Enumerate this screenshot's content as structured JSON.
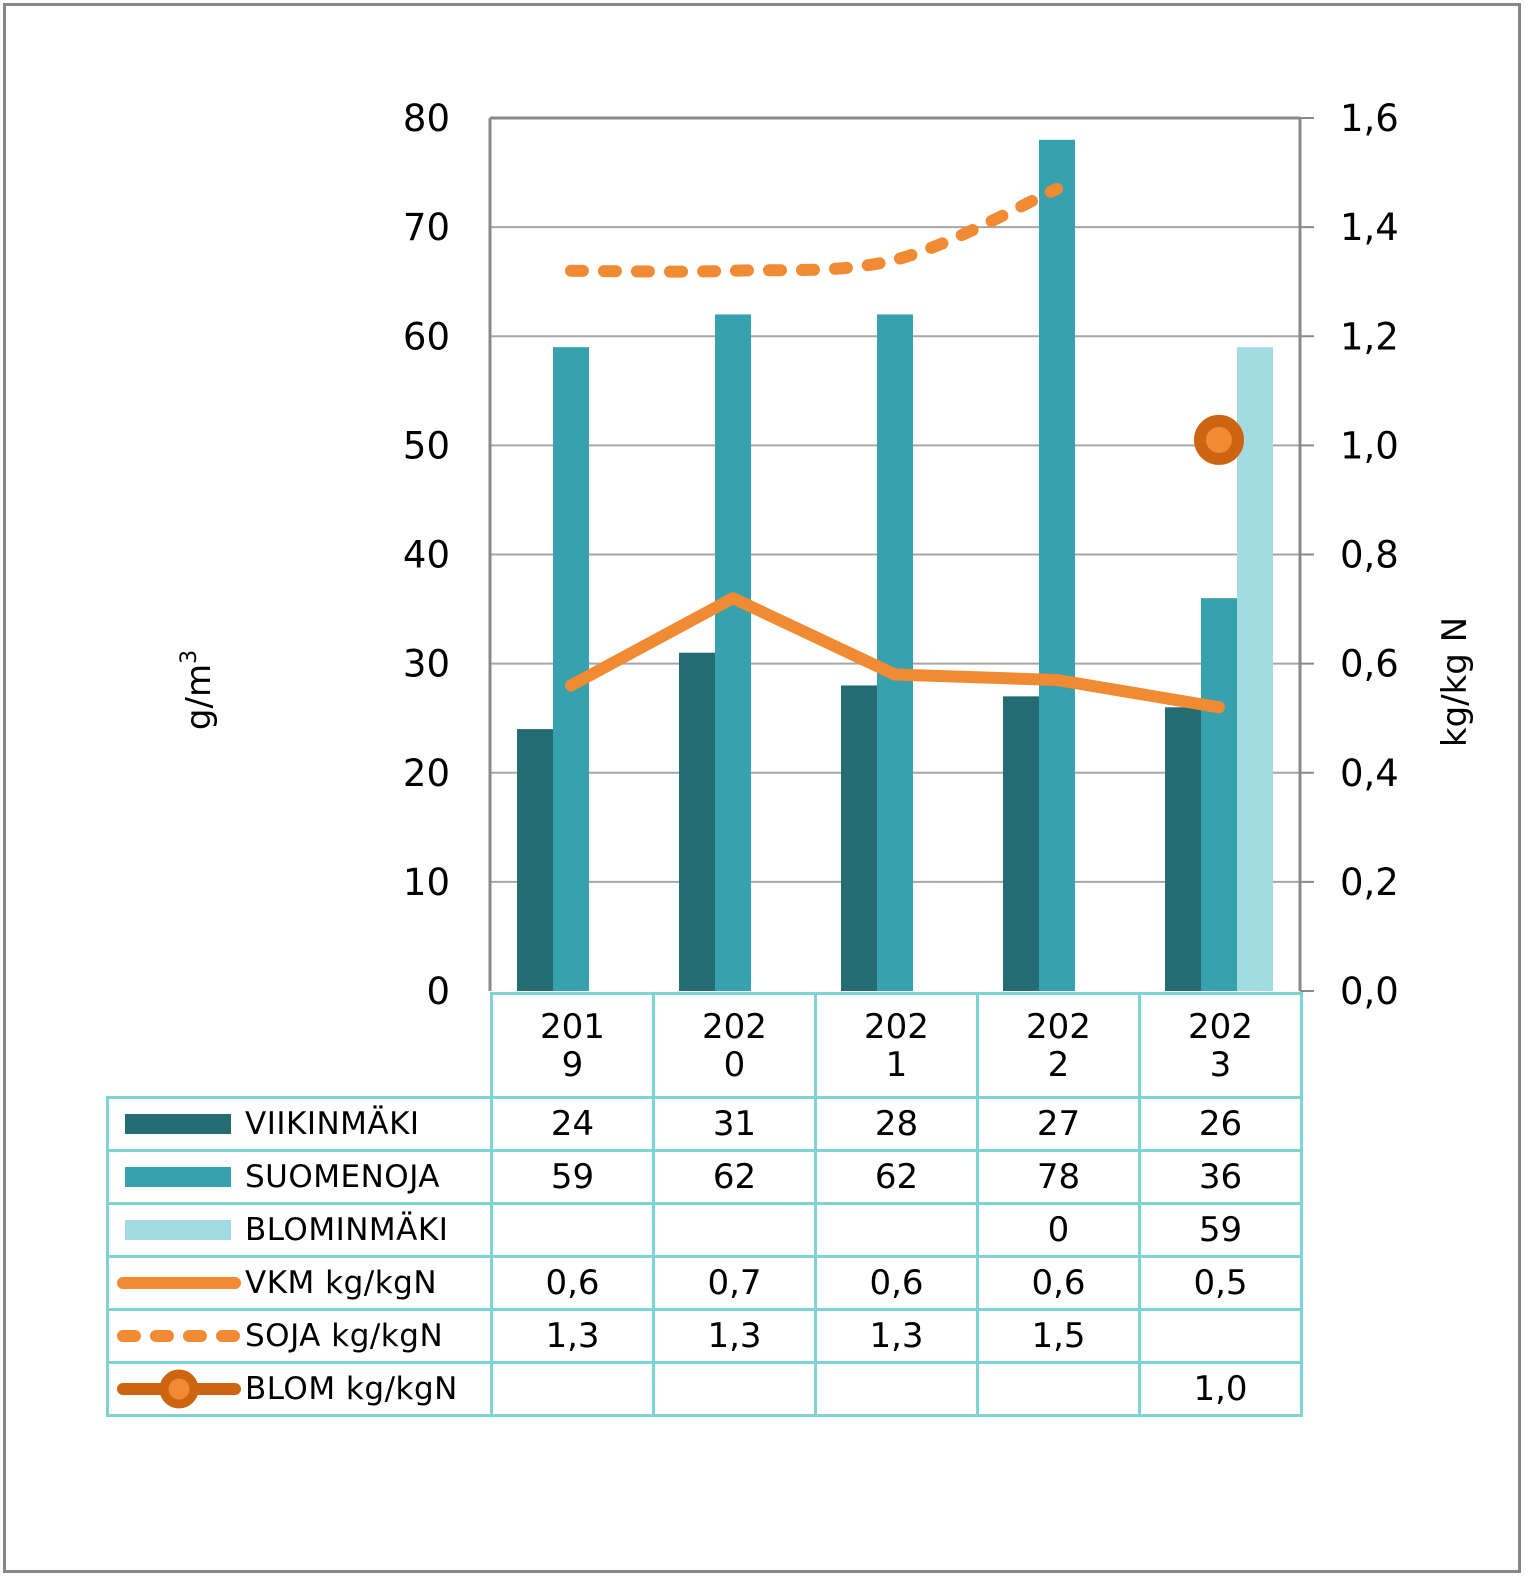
{
  "chart_data": {
    "type": "bar",
    "title": "",
    "categories": [
      "2019",
      "2020",
      "2021",
      "2022",
      "2023"
    ],
    "category_labels": [
      [
        "201",
        "9"
      ],
      [
        "202",
        "0"
      ],
      [
        "202",
        "1"
      ],
      [
        "202",
        "2"
      ],
      [
        "202",
        "3"
      ]
    ],
    "ylabel": "g/m",
    "ylabel_superscript": "3",
    "y2label": "kg/kg N",
    "ylim": [
      0,
      80
    ],
    "y2lim": [
      0,
      1.6
    ],
    "yticks": [
      "0",
      "10",
      "20",
      "30",
      "40",
      "50",
      "60",
      "70",
      "80"
    ],
    "y2ticks": [
      "0,0",
      "0,2",
      "0,4",
      "0,6",
      "0,8",
      "1,0",
      "1,2",
      "1,4",
      "1,6"
    ],
    "grid": true,
    "legend": "data-table-bottom",
    "bar_series": [
      {
        "name": "VIIKINMÄKI",
        "color": "#256b73",
        "values": [
          24,
          31,
          28,
          27,
          26
        ],
        "display": [
          "24",
          "31",
          "28",
          "27",
          "26"
        ]
      },
      {
        "name": "SUOMENOJA",
        "color": "#38a1ae",
        "values": [
          59,
          62,
          62,
          78,
          36
        ],
        "display": [
          "59",
          "62",
          "62",
          "78",
          "36"
        ]
      },
      {
        "name": "BLOMINMÄKI",
        "color": "#a3dbe2",
        "values": [
          null,
          null,
          null,
          0,
          59
        ],
        "display": [
          "",
          "",
          "",
          "0",
          "59"
        ]
      }
    ],
    "line_series": [
      {
        "name": "VKM kg/kgN",
        "color": "#f08a33",
        "style": "solid",
        "axis": "right",
        "values": [
          0.56,
          0.72,
          0.58,
          0.57,
          0.52
        ],
        "display": [
          "0,6",
          "0,7",
          "0,6",
          "0,6",
          "0,5"
        ]
      },
      {
        "name": "SOJA kg/kgN",
        "color": "#f08a33",
        "style": "dashed",
        "axis": "right",
        "values": [
          1.32,
          1.32,
          1.34,
          1.47,
          null
        ],
        "display": [
          "1,3",
          "1,3",
          "1,3",
          "1,5",
          ""
        ]
      },
      {
        "name": "BLOM kg/kgN",
        "color": "#cd6510",
        "marker_fill": "#f08a33",
        "style": "marker",
        "axis": "right",
        "values": [
          null,
          null,
          null,
          null,
          1.01
        ],
        "display": [
          "",
          "",
          "",
          "",
          "1,0"
        ]
      }
    ]
  },
  "colors": {
    "frame": "#878787",
    "axis": "#898989",
    "grid": "#a6a6a6",
    "table_border": "#7fd3d0"
  }
}
